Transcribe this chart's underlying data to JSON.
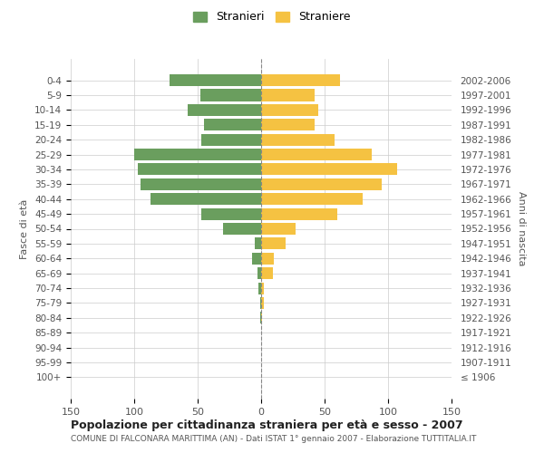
{
  "age_groups": [
    "100+",
    "95-99",
    "90-94",
    "85-89",
    "80-84",
    "75-79",
    "70-74",
    "65-69",
    "60-64",
    "55-59",
    "50-54",
    "45-49",
    "40-44",
    "35-39",
    "30-34",
    "25-29",
    "20-24",
    "15-19",
    "10-14",
    "5-9",
    "0-4"
  ],
  "birth_years": [
    "≤ 1906",
    "1907-1911",
    "1912-1916",
    "1917-1921",
    "1922-1926",
    "1927-1931",
    "1932-1936",
    "1937-1941",
    "1942-1946",
    "1947-1951",
    "1952-1956",
    "1957-1961",
    "1962-1966",
    "1967-1971",
    "1972-1976",
    "1977-1981",
    "1982-1986",
    "1987-1991",
    "1992-1996",
    "1997-2001",
    "2002-2006"
  ],
  "males": [
    0,
    0,
    0,
    0,
    1,
    1,
    2,
    3,
    7,
    5,
    30,
    47,
    87,
    95,
    97,
    100,
    47,
    45,
    58,
    48,
    72
  ],
  "females": [
    0,
    0,
    0,
    0,
    1,
    2,
    2,
    9,
    10,
    19,
    27,
    60,
    80,
    95,
    107,
    87,
    58,
    42,
    45,
    42,
    62
  ],
  "male_color": "#6a9e5e",
  "female_color": "#f5c242",
  "male_label": "Stranieri",
  "female_label": "Straniere",
  "ylabel_left": "Fasce di età",
  "ylabel_right": "Anni di nascita",
  "title": "Popolazione per cittadinanza straniera per età e sesso - 2007",
  "subtitle": "COMUNE DI FALCONARA MARITTIMA (AN) - Dati ISTAT 1° gennaio 2007 - Elaborazione TUTTITALIA.IT",
  "xlim": 150,
  "background_color": "#ffffff",
  "grid_color": "#cccccc",
  "bar_height": 0.8
}
